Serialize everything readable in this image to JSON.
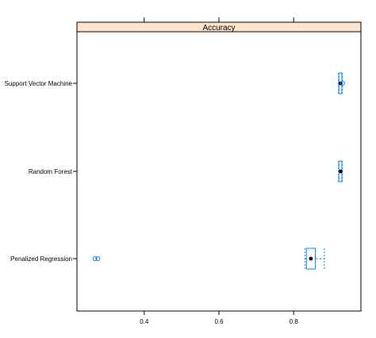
{
  "chart_data": {
    "type": "box",
    "panel_title": "Accuracy",
    "categories": [
      "Support Vector Machine",
      "Random Forest",
      "Penalized Regression"
    ],
    "x_ticks": [
      0.4,
      0.6,
      0.8
    ],
    "x_tick_labels": [
      "0.4",
      "0.6",
      "0.8"
    ],
    "xlim": [
      0.22,
      0.98
    ],
    "series": [
      {
        "name": "Support Vector Machine",
        "whisker_low": 0.92,
        "q1": 0.921,
        "median": 0.925,
        "q3": 0.929,
        "whisker_high": 0.93,
        "outliers": [
          0.931
        ]
      },
      {
        "name": "Random Forest",
        "whisker_low": 0.92,
        "q1": 0.921,
        "median": 0.926,
        "q3": 0.929,
        "whisker_high": 0.93,
        "outliers": []
      },
      {
        "name": "Penalized Regression",
        "whisker_low": 0.83,
        "q1": 0.834,
        "median": 0.846,
        "q3": 0.858,
        "whisker_high": 0.882,
        "outliers": [
          0.268,
          0.276
        ]
      }
    ],
    "grid": false,
    "colors": {
      "strip_fill": "#FFE5CC",
      "box_stroke": "#0080FF",
      "whisker": "#0080FF",
      "median_dot": "#000000",
      "frame": "#000000"
    }
  }
}
